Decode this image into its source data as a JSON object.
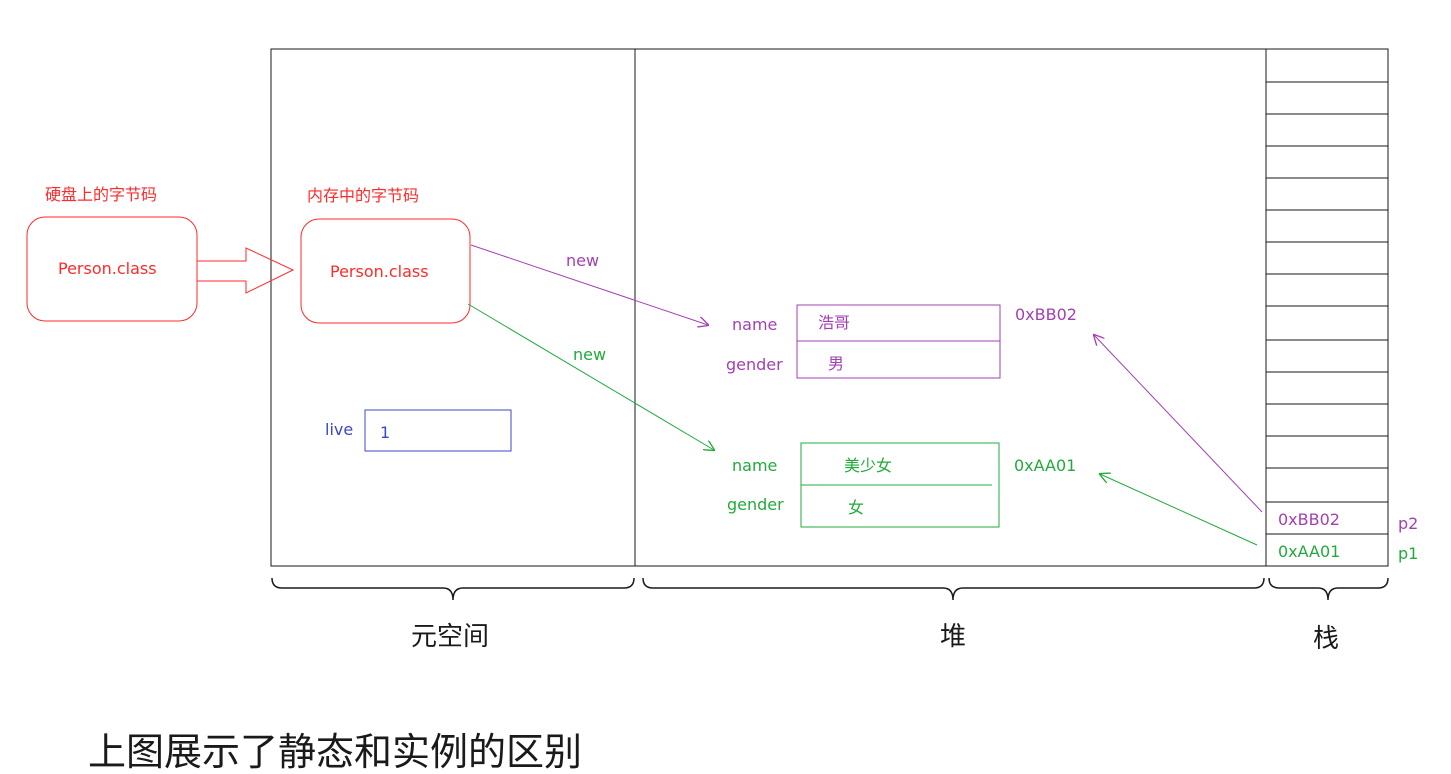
{
  "colors": {
    "red": "#ff2a2a",
    "purple": "#a33fb4",
    "green": "#22aa3c",
    "blue": "#3a48c4",
    "black": "#1a1a1a"
  },
  "disk": {
    "label": "硬盘上的字节码",
    "box_text": "Person.class"
  },
  "memory": {
    "label": "内存中的字节码",
    "box_text": "Person.class"
  },
  "static_var": {
    "name": "live",
    "value": "1"
  },
  "arrows": {
    "new_purple": "new",
    "new_green": "new"
  },
  "objects": {
    "obj_bb02": {
      "address": "0xBB02",
      "name_label": "name",
      "name_value": "浩哥",
      "gender_label": "gender",
      "gender_value": "男"
    },
    "obj_aa01": {
      "address": "0xAA01",
      "name_label": "name",
      "name_value": "美少女",
      "gender_label": "gender",
      "gender_value": "女"
    }
  },
  "stack": {
    "slot_p2_value": "0xBB02",
    "slot_p2_var": "p2",
    "slot_p1_value": "0xAA01",
    "slot_p1_var": "p1"
  },
  "regions": {
    "metaspace": "元空间",
    "heap": "堆",
    "stack": "栈"
  },
  "footer_text": "上图展示了静态和实例的区别"
}
